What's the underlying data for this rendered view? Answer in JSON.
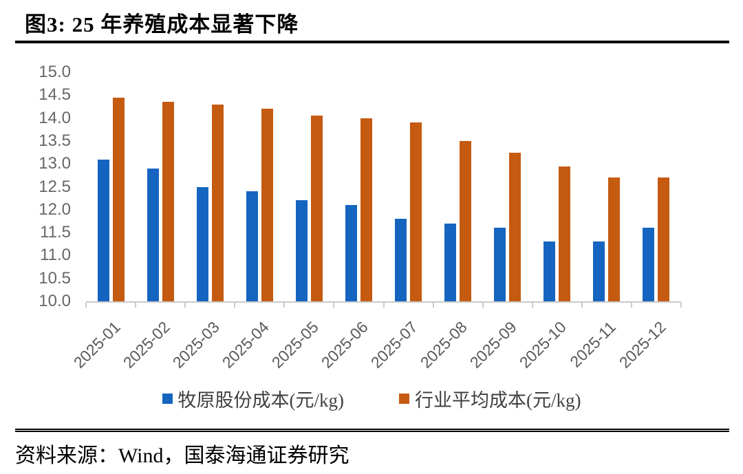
{
  "header": {
    "title": "图3:  25 年养殖成本显著下降"
  },
  "chart_data": {
    "type": "bar",
    "title": "25 年养殖成本显著下降",
    "categories": [
      "2025-01",
      "2025-02",
      "2025-03",
      "2025-04",
      "2025-05",
      "2025-06",
      "2025-07",
      "2025-08",
      "2025-09",
      "2025-10",
      "2025-11",
      "2025-12"
    ],
    "series": [
      {
        "name": "牧原股份成本(元/kg)",
        "color": "#1565C0",
        "values": [
          13.1,
          12.9,
          12.5,
          12.4,
          12.2,
          12.1,
          11.8,
          11.7,
          11.6,
          11.3,
          11.3,
          11.6
        ]
      },
      {
        "name": "行业平均成本(元/kg)",
        "color": "#C55A11",
        "values": [
          14.45,
          14.35,
          14.3,
          14.2,
          14.05,
          14.0,
          13.9,
          13.5,
          13.25,
          12.95,
          12.7,
          12.7
        ]
      }
    ],
    "xlabel": "",
    "ylabel": "",
    "ylim": [
      10.0,
      15.0
    ],
    "yticks": [
      "15.0",
      "14.5",
      "14.0",
      "13.5",
      "13.0",
      "12.5",
      "12.0",
      "11.5",
      "11.0",
      "10.5",
      "10.0"
    ],
    "grid": false,
    "legend_position": "bottom",
    "axis_color": "#c9c9c9",
    "tick_label_color": "#595959"
  },
  "footer": {
    "source": "资料来源：Wind，国泰海通证券研究"
  }
}
